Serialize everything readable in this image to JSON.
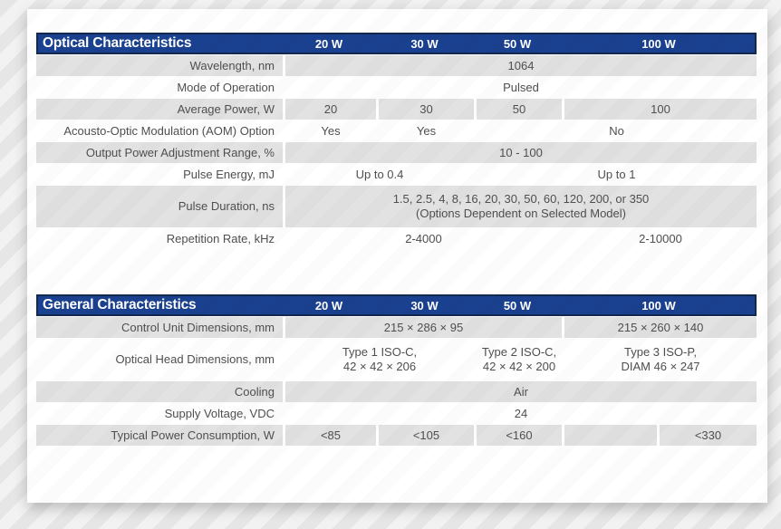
{
  "colors": {
    "header_bg": "#1a418f",
    "header_border": "#13294e",
    "header_text": "#ffffff",
    "row_gray": "#e2e2e2",
    "body_text": "#4f4f4f"
  },
  "tables": [
    {
      "title": "Optical Characteristics",
      "columns": [
        {
          "label": "20 W",
          "span": 1
        },
        {
          "label": "30 W",
          "span": 1
        },
        {
          "label": "50 W",
          "span": 1
        },
        {
          "label": "100 W",
          "span": 2
        }
      ],
      "rows": [
        {
          "label": "Wavelength, nm",
          "shade": "gray",
          "tall": false,
          "cells": [
            {
              "text": "1064",
              "span": 5
            }
          ]
        },
        {
          "label": "Mode of Operation",
          "shade": "white",
          "tall": false,
          "cells": [
            {
              "text": "Pulsed",
              "span": 5
            }
          ]
        },
        {
          "label": "Average Power, W",
          "shade": "gray",
          "tall": false,
          "cells": [
            {
              "text": "20",
              "span": 1
            },
            {
              "text": "30",
              "span": 1
            },
            {
              "text": "50",
              "span": 1
            },
            {
              "text": "100",
              "span": 2
            }
          ]
        },
        {
          "label": "Acousto-Optic Modulation (AOM) Option",
          "shade": "white",
          "tall": false,
          "cells": [
            {
              "text": "Yes",
              "span": 1
            },
            {
              "text": "Yes",
              "span": 1
            },
            {
              "text": "No",
              "span": 3
            }
          ]
        },
        {
          "label": "Output Power Adjustment Range, %",
          "shade": "gray",
          "tall": false,
          "cells": [
            {
              "text": "10 - 100",
              "span": 5
            }
          ]
        },
        {
          "label": "Pulse Energy, mJ",
          "shade": "white",
          "tall": false,
          "cells": [
            {
              "text": "Up to 0.4",
              "span": 2
            },
            {
              "text": "Up to 1",
              "span": 3
            }
          ]
        },
        {
          "label": "Pulse Duration, ns",
          "shade": "gray",
          "tall": true,
          "cells": [
            {
              "text": "1.5, 2.5, 4, 8, 16, 20, 30, 50, 60, 120, 200, or 350\n(Options Dependent on Selected Model)",
              "span": 5
            }
          ]
        },
        {
          "label": "Repetition Rate, kHz",
          "shade": "white",
          "tall": false,
          "cells": [
            {
              "text": "2-4000",
              "span": 3
            },
            {
              "text": "2-10000",
              "span": 2
            }
          ]
        }
      ]
    },
    {
      "title": "General Characteristics",
      "columns": [
        {
          "label": "20 W",
          "span": 1
        },
        {
          "label": "30 W",
          "span": 1
        },
        {
          "label": "50 W",
          "span": 1
        },
        {
          "label": "100 W",
          "span": 2
        }
      ],
      "rows": [
        {
          "label": "Control Unit Dimensions, mm",
          "shade": "gray",
          "tall": false,
          "cells": [
            {
              "text": "215 × 286 × 95",
              "span": 3
            },
            {
              "text": "215 × 260 × 140",
              "span": 2
            }
          ]
        },
        {
          "label": "Optical Head Dimensions, mm",
          "shade": "white",
          "tall": true,
          "cells": [
            {
              "text": "Type 1 ISO-C,\n42 × 42 × 206",
              "span": 2
            },
            {
              "text": "Type 2 ISO-C,\n42 × 42 × 200",
              "span": 1
            },
            {
              "text": "Type 3 ISO-P,\nDIAM 46 × 247",
              "span": 2
            }
          ]
        },
        {
          "label": "Cooling",
          "shade": "gray",
          "tall": false,
          "cells": [
            {
              "text": "Air",
              "span": 5
            }
          ]
        },
        {
          "label": "Supply Voltage, VDC",
          "shade": "white",
          "tall": false,
          "cells": [
            {
              "text": "24",
              "span": 5
            }
          ]
        },
        {
          "label": "Typical Power Consumption, W",
          "shade": "gray",
          "tall": false,
          "cells": [
            {
              "text": "<85",
              "span": 1
            },
            {
              "text": "<105",
              "span": 1
            },
            {
              "text": "<160",
              "span": 1
            },
            {
              "text": "",
              "span": 1
            },
            {
              "text": "<330",
              "span": 1
            }
          ]
        }
      ]
    }
  ]
}
